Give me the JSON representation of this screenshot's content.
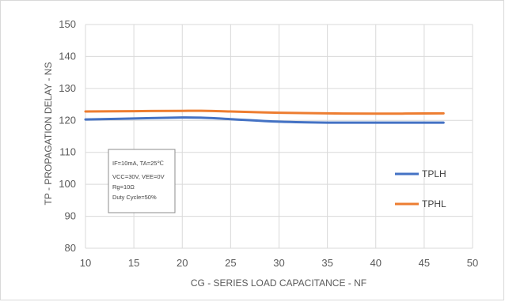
{
  "chart_data": {
    "type": "line",
    "title": "",
    "xlabel": "CG - SERIES LOAD CAPACITANCE - NF",
    "ylabel": "TP - PROPAGATION DELAY - NS",
    "xlim": [
      10,
      50
    ],
    "ylim": [
      80,
      150
    ],
    "x_ticks": [
      "10",
      "15",
      "20",
      "25",
      "30",
      "35",
      "40",
      "45",
      "50"
    ],
    "y_ticks": [
      "80",
      "90",
      "100",
      "110",
      "120",
      "130",
      "140",
      "150"
    ],
    "grid": true,
    "legend_position": "right",
    "series": [
      {
        "name": "TPLH",
        "color": "#4472c4",
        "x": [
          10,
          15,
          20,
          22.5,
          25,
          30,
          35,
          40,
          47
        ],
        "y": [
          120.3,
          120.6,
          120.9,
          120.8,
          120.4,
          119.6,
          119.3,
          119.3,
          119.3
        ]
      },
      {
        "name": "TPHL",
        "color": "#ed7d31",
        "x": [
          10,
          15,
          20,
          22.5,
          25,
          30,
          35,
          40,
          47
        ],
        "y": [
          122.8,
          122.9,
          123.0,
          123.0,
          122.8,
          122.4,
          122.2,
          122.1,
          122.2
        ]
      }
    ],
    "annotation": {
      "lines": [
        "IF=10mA, TA=25℃",
        "VCC=30V, VEE=0V",
        "Rg=10Ω",
        "Duty Cycle=50%"
      ]
    }
  }
}
